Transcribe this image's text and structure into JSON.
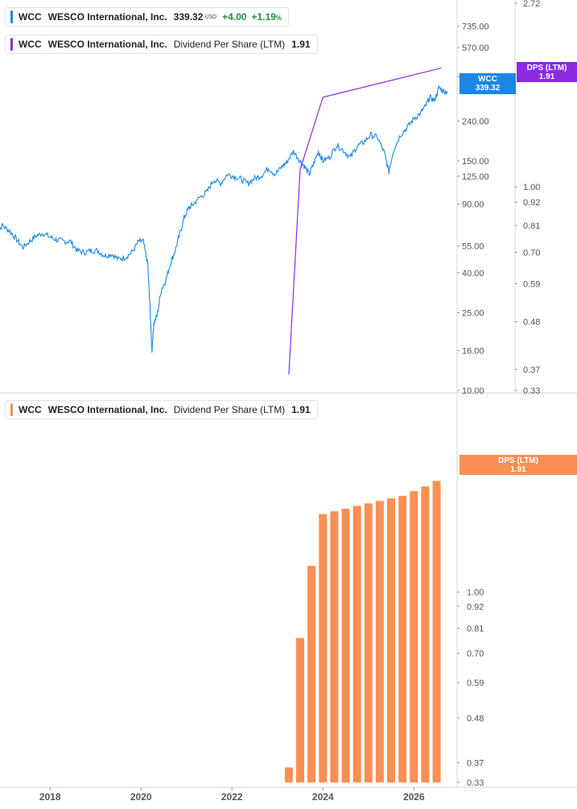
{
  "legends": {
    "price": {
      "ticker": "WCC",
      "name": "WESCO International, Inc.",
      "price": "339.32",
      "currency": "USD",
      "change": "+4.00",
      "change_pct": "+1.19",
      "pct_sign": "%"
    },
    "dps_top": {
      "ticker": "WCC",
      "name": "WESCO International, Inc.",
      "metric": "Dividend Per Share (LTM)",
      "value": "1.91"
    },
    "dps_bottom": {
      "ticker": "WCC",
      "name": "WESCO International, Inc.",
      "metric": "Dividend Per Share (LTM)",
      "value": "1.91"
    }
  },
  "flags": {
    "price": {
      "label": "WCC",
      "value": "339.32"
    },
    "dps_top": {
      "label": "DPS (LTM)",
      "value": "1.91"
    },
    "dps_bottom": {
      "label": "DPS (LTM)",
      "value": "1.91"
    }
  },
  "colors": {
    "price_line": "#1a87e6",
    "dps_line": "#8a2be2",
    "dps_bars": "#f98f55",
    "price_flag": "#1a87e6",
    "dps_flag_top": "#8a2be2",
    "dps_flag_bottom": "#f98f55",
    "axis_text": "#555555",
    "divider": "#d6d6d6"
  },
  "chart_data": [
    {
      "type": "line",
      "panel": "top",
      "scale": "log",
      "series": [
        {
          "name": "WCC",
          "axis": "left",
          "points": [
            [
              2016.8,
              62
            ],
            [
              2016.95,
              70
            ],
            [
              2017.1,
              66
            ],
            [
              2017.25,
              60
            ],
            [
              2017.4,
              54
            ],
            [
              2017.55,
              58
            ],
            [
              2017.7,
              62
            ],
            [
              2017.85,
              64
            ],
            [
              2018.0,
              61
            ],
            [
              2018.15,
              59
            ],
            [
              2018.3,
              58
            ],
            [
              2018.45,
              58
            ],
            [
              2018.6,
              52
            ],
            [
              2018.75,
              51
            ],
            [
              2018.9,
              52
            ],
            [
              2019.05,
              52
            ],
            [
              2019.2,
              49
            ],
            [
              2019.35,
              50
            ],
            [
              2019.5,
              47
            ],
            [
              2019.65,
              48
            ],
            [
              2019.8,
              51
            ],
            [
              2019.95,
              58
            ],
            [
              2020.05,
              58
            ],
            [
              2020.15,
              44
            ],
            [
              2020.2,
              26
            ],
            [
              2020.24,
              16
            ],
            [
              2020.28,
              22
            ],
            [
              2020.35,
              24
            ],
            [
              2020.45,
              33
            ],
            [
              2020.55,
              37
            ],
            [
              2020.65,
              45
            ],
            [
              2020.75,
              52
            ],
            [
              2020.85,
              63
            ],
            [
              2020.95,
              77
            ],
            [
              2021.05,
              86
            ],
            [
              2021.15,
              90
            ],
            [
              2021.3,
              98
            ],
            [
              2021.45,
              104
            ],
            [
              2021.6,
              120
            ],
            [
              2021.75,
              115
            ],
            [
              2021.9,
              128
            ],
            [
              2022.05,
              125
            ],
            [
              2022.2,
              121
            ],
            [
              2022.35,
              115
            ],
            [
              2022.5,
              122
            ],
            [
              2022.65,
              126
            ],
            [
              2022.8,
              138
            ],
            [
              2022.95,
              128
            ],
            [
              2023.1,
              140
            ],
            [
              2023.2,
              147
            ],
            [
              2023.35,
              168
            ],
            [
              2023.5,
              150
            ],
            [
              2023.6,
              140
            ],
            [
              2023.7,
              128
            ],
            [
              2023.8,
              146
            ],
            [
              2023.9,
              168
            ],
            [
              2024.0,
              150
            ],
            [
              2024.15,
              157
            ],
            [
              2024.3,
              181
            ],
            [
              2024.45,
              170
            ],
            [
              2024.6,
              156
            ],
            [
              2024.75,
              178
            ],
            [
              2024.9,
              187
            ],
            [
              2025.05,
              204
            ],
            [
              2025.2,
              198
            ],
            [
              2025.35,
              165
            ],
            [
              2025.45,
              132
            ],
            [
              2025.55,
              170
            ],
            [
              2025.7,
              203
            ],
            [
              2025.85,
              222
            ],
            [
              2026.0,
              247
            ],
            [
              2026.15,
              264
            ],
            [
              2026.25,
              285
            ],
            [
              2026.35,
              318
            ],
            [
              2026.45,
              305
            ],
            [
              2026.55,
              355
            ],
            [
              2026.65,
              342
            ],
            [
              2026.75,
              339
            ]
          ]
        },
        {
          "name": "DPS (LTM)",
          "axis": "right",
          "points": [
            [
              2023.25,
              0.36
            ],
            [
              2023.5,
              1.1
            ],
            [
              2024.0,
              1.63
            ],
            [
              2026.6,
              1.91
            ]
          ]
        }
      ],
      "xlim": [
        2016.9,
        2026.95
      ],
      "ylim_left": [
        10,
        1000
      ],
      "ylim_right": [
        0.33,
        2.72
      ],
      "left_ticks": [
        "735.00",
        "570.00",
        "405.00",
        "240.00",
        "150.00",
        "125.00",
        "90.00",
        "55.00",
        "40.00",
        "25.00",
        "16.00",
        "10.00"
      ],
      "right_ticks": [
        "2.72",
        "1.00",
        "0.92",
        "0.81",
        "0.70",
        "0.59",
        "0.48",
        "0.37",
        "0.33"
      ],
      "grid": false
    },
    {
      "type": "bar",
      "panel": "bottom",
      "scale": "log",
      "series": [
        {
          "name": "DPS (LTM)",
          "x": [
            2023.25,
            2023.5,
            2023.75,
            2024.0,
            2024.25,
            2024.5,
            2024.75,
            2025.0,
            2025.25,
            2025.5,
            2025.75,
            2026.0,
            2026.25,
            2026.5
          ],
          "values": [
            0.36,
            0.765,
            1.165,
            1.575,
            1.6,
            1.625,
            1.65,
            1.675,
            1.7,
            1.725,
            1.75,
            1.8,
            1.85,
            1.91
          ]
        }
      ],
      "xlim": [
        2016.9,
        2026.95
      ],
      "ylim": [
        0.33,
        2.72
      ],
      "x_ticks": [
        "2018",
        "2020",
        "2022",
        "2024",
        "2026"
      ],
      "y_ticks": [
        "1.00",
        "0.92",
        "0.81",
        "0.70",
        "0.59",
        "0.48",
        "0.37",
        "0.33"
      ],
      "grid": false
    }
  ]
}
